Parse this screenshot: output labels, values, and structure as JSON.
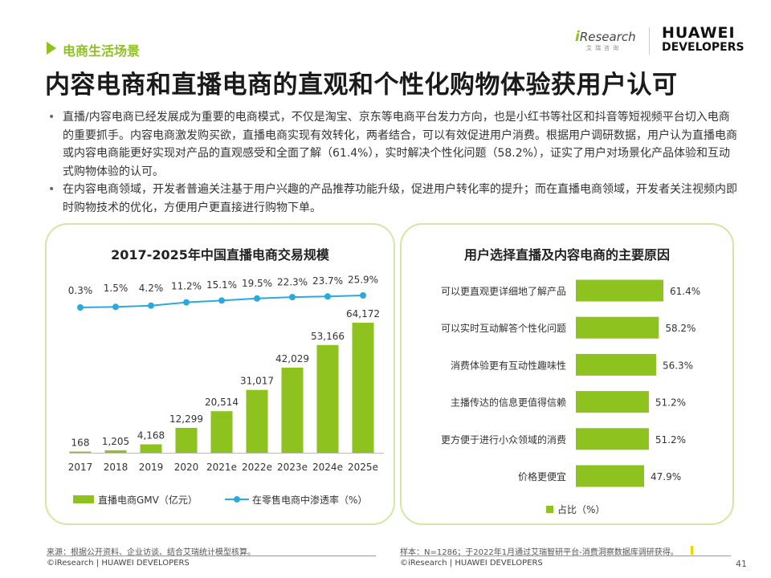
{
  "header": {
    "section_label": "电商生活场景",
    "title": "内容电商和直播电商的直观和个性化购物体验获用户认可",
    "logo_iresearch": "iResearch",
    "logo_iresearch_sub": "艾瑞咨询",
    "logo_huawei_line1": "HUAWEI",
    "logo_huawei_line2": "DEVELOPERS"
  },
  "bullets": [
    "直播/内容电商已经发展成为重要的电商模式，不仅是淘宝、京东等电商平台发力方向，也是小红书等社区和抖音等短视频平台切入电商的重要抓手。内容电商激发购买欲，直播电商实现有效转化，两者结合，可以有效促进用户消费。根据用户调研数据，用户认为直播电商或内容电商能更好实现对产品的直观感受和全面了解（61.4%），实时解决个性化问题（58.2%），证实了用户对场景化产品体验和互动式购物体验的认可。",
    "在内容电商领域，开发者普遍关注基于用户兴趣的产品推荐功能升级，促进用户转化率的提升；而在直播电商领域，开发者关注视频内即时购物技术的优化，方便用户更直接进行购物下单。"
  ],
  "chart_data": [
    {
      "type": "bar+line",
      "title": "2017-2025年中国直播电商交易规模",
      "categories": [
        "2017",
        "2018",
        "2019",
        "2020",
        "2021e",
        "2022e",
        "2023e",
        "2024e",
        "2025e"
      ],
      "series": [
        {
          "name": "直播电商GMV（亿元）",
          "type": "bar",
          "values": [
            168,
            1205,
            4168,
            12299,
            20514,
            31017,
            42029,
            53166,
            64172
          ],
          "labels": [
            "168",
            "1,205",
            "4,168",
            "12,299",
            "20,514",
            "31,017",
            "42,029",
            "53,166",
            "64,172"
          ],
          "color": "#8dc21f"
        },
        {
          "name": "在零售电商中渗透率（%）",
          "type": "line",
          "values": [
            0.3,
            1.5,
            4.2,
            11.2,
            15.1,
            19.5,
            22.3,
            23.7,
            25.9
          ],
          "labels": [
            "0.3%",
            "1.5%",
            "4.2%",
            "11.2%",
            "15.1%",
            "19.5%",
            "22.3%",
            "23.7%",
            "25.9%"
          ],
          "color": "#29a9e0"
        }
      ],
      "legend": "bottom"
    },
    {
      "type": "bar",
      "orientation": "horizontal",
      "title": "用户选择直播及内容电商的主要原因",
      "categories": [
        "可以更直观更详细地了解产品",
        "可以实时互动解答个性化问题",
        "消费体验更有互动性趣味性",
        "主播传达的信息更值得信赖",
        "更方便于进行小众领域的消费",
        "价格更便宜"
      ],
      "series": [
        {
          "name": "占比（%）",
          "values": [
            61.4,
            58.2,
            56.3,
            51.2,
            51.2,
            47.9
          ],
          "labels": [
            "61.4%",
            "58.2%",
            "56.3%",
            "51.2%",
            "51.2%",
            "47.9%"
          ],
          "color": "#8dc21f"
        }
      ],
      "legend": "bottom"
    }
  ],
  "footer": {
    "left_source": "来源：根据公开资料、企业访谈、结合艾瑞统计模型核算。",
    "right_source": "样本：N=1286；于2022年1月通过艾瑞智研平台-消费洞察数据库调研获得。",
    "left_copyright": "©iResearch | HUAWEI DEVELOPERS",
    "right_copyright": "©iResearch | HUAWEI DEVELOPERS",
    "page_number": "41"
  }
}
